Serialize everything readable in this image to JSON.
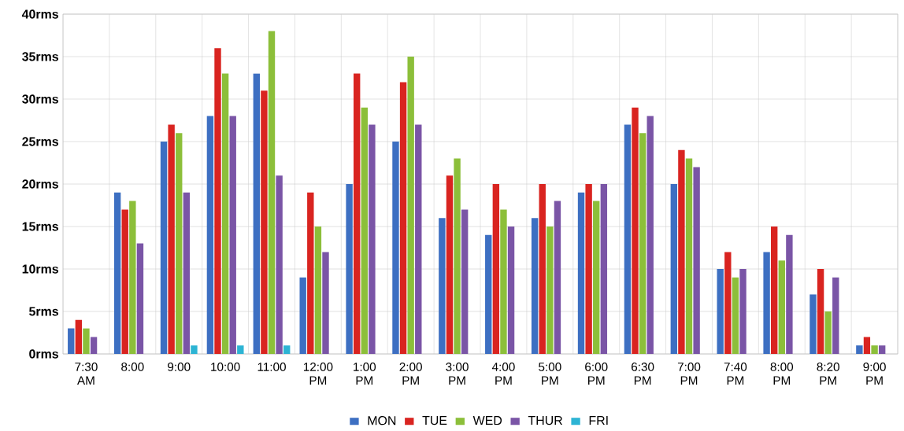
{
  "chart_data": {
    "type": "bar",
    "categories": [
      "7:30 AM",
      "8:00",
      "9:00",
      "10:00",
      "11:00",
      "12:00 PM",
      "1:00 PM",
      "2:00 PM",
      "3:00 PM",
      "4:00 PM",
      "5:00 PM",
      "6:00 PM",
      "6:30 PM",
      "7:00 PM",
      "7:40 PM",
      "8:00 PM",
      "8:20 PM",
      "9:00 PM"
    ],
    "series": [
      {
        "name": "MON",
        "color": "#3d6fc2",
        "values": [
          3,
          19,
          25,
          28,
          33,
          9,
          20,
          25,
          16,
          14,
          16,
          19,
          27,
          20,
          10,
          12,
          7,
          1
        ]
      },
      {
        "name": "TUE",
        "color": "#d92420",
        "values": [
          4,
          17,
          27,
          36,
          31,
          19,
          33,
          32,
          21,
          20,
          20,
          20,
          29,
          24,
          12,
          15,
          10,
          2
        ]
      },
      {
        "name": "WED",
        "color": "#8cbf3a",
        "values": [
          3,
          18,
          26,
          33,
          38,
          15,
          29,
          35,
          23,
          17,
          15,
          18,
          26,
          23,
          9,
          11,
          5,
          1
        ]
      },
      {
        "name": "THUR",
        "color": "#7a55a6",
        "values": [
          2,
          13,
          19,
          28,
          21,
          12,
          27,
          27,
          17,
          15,
          18,
          20,
          28,
          22,
          10,
          14,
          9,
          1
        ]
      },
      {
        "name": "FRI",
        "color": "#2db4d4",
        "values": [
          0,
          0,
          1,
          1,
          1,
          0,
          0,
          0,
          0,
          0,
          0,
          0,
          0,
          0,
          0,
          0,
          0,
          0
        ]
      }
    ],
    "ylim": [
      0,
      40
    ],
    "yticks": [
      {
        "value": 0,
        "label": "0rms"
      },
      {
        "value": 5,
        "label": "5rms"
      },
      {
        "value": 10,
        "label": "10rms"
      },
      {
        "value": 15,
        "label": "15rms"
      },
      {
        "value": 20,
        "label": "20rms"
      },
      {
        "value": 25,
        "label": "25rms"
      },
      {
        "value": 30,
        "label": "30rms"
      },
      {
        "value": 35,
        "label": "35rms"
      },
      {
        "value": 40,
        "label": "40rms"
      }
    ],
    "grid": "y",
    "legend": "bottom"
  }
}
